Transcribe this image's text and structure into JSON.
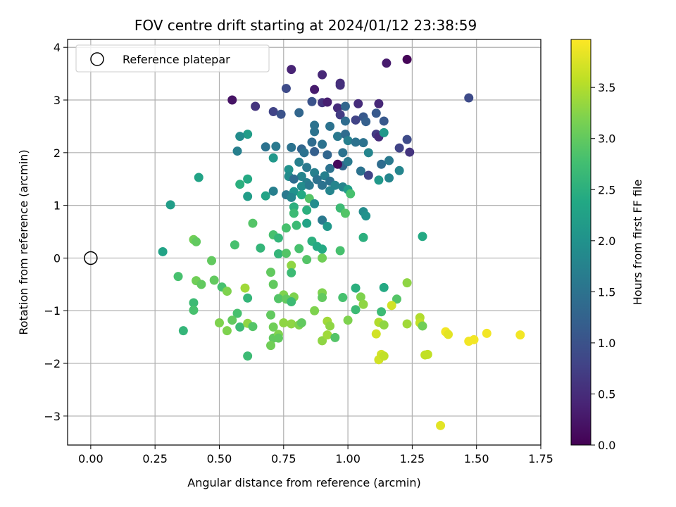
{
  "chart_data": {
    "type": "scatter",
    "title": "FOV centre drift starting at 2024/01/12 23:38:59",
    "xlabel": "Angular distance from reference (arcmin)",
    "ylabel": "Rotation from reference (arcmin)",
    "xlim": [
      -0.09,
      1.75
    ],
    "ylim": [
      -3.55,
      4.15
    ],
    "xticks": [
      0.0,
      0.25,
      0.5,
      0.75,
      1.0,
      1.25,
      1.5,
      1.75
    ],
    "xtick_labels": [
      "0.00",
      "0.25",
      "0.50",
      "0.75",
      "1.00",
      "1.25",
      "1.50",
      "1.75"
    ],
    "yticks": [
      -3,
      -2,
      -1,
      0,
      1,
      2,
      3,
      4
    ],
    "ytick_labels": [
      "−3",
      "−2",
      "−1",
      "0",
      "1",
      "2",
      "3",
      "4"
    ],
    "grid": true,
    "legend": {
      "position": "top-left",
      "entries": [
        {
          "label": "Reference platepar",
          "marker": "open-circle"
        }
      ]
    },
    "reference": {
      "x": 0.0,
      "y": 0.0
    },
    "colorbar": {
      "label": "Hours from first FF file",
      "colormap": "viridis",
      "range": [
        0.0,
        3.97
      ],
      "ticks": [
        0.0,
        0.5,
        1.0,
        1.5,
        2.0,
        2.5,
        3.0,
        3.5
      ],
      "tick_labels": [
        "0.0",
        "0.5",
        "1.0",
        "1.5",
        "2.0",
        "2.5",
        "3.0",
        "3.5"
      ]
    },
    "points": [
      [
        1.23,
        3.77,
        0.05
      ],
      [
        1.15,
        3.7,
        0.3
      ],
      [
        0.78,
        3.58,
        0.4
      ],
      [
        0.9,
        3.48,
        0.45
      ],
      [
        0.97,
        3.32,
        0.5
      ],
      [
        0.97,
        3.28,
        0.55
      ],
      [
        0.76,
        3.22,
        0.9
      ],
      [
        0.87,
        3.2,
        0.3
      ],
      [
        0.55,
        3.0,
        0.2
      ],
      [
        0.64,
        2.88,
        0.6
      ],
      [
        0.86,
        2.97,
        1.0
      ],
      [
        0.9,
        2.95,
        0.6
      ],
      [
        0.92,
        2.96,
        0.35
      ],
      [
        1.04,
        2.93,
        0.5
      ],
      [
        1.12,
        2.93,
        0.45
      ],
      [
        1.47,
        3.04,
        0.9
      ],
      [
        0.96,
        2.85,
        0.5
      ],
      [
        0.71,
        2.78,
        0.8
      ],
      [
        0.74,
        2.73,
        1.0
      ],
      [
        0.81,
        2.76,
        1.3
      ],
      [
        0.97,
        2.72,
        0.7
      ],
      [
        0.99,
        2.88,
        1.3
      ],
      [
        1.06,
        2.68,
        1.1
      ],
      [
        1.11,
        2.75,
        1.1
      ],
      [
        1.03,
        2.62,
        0.8
      ],
      [
        1.07,
        2.59,
        1.2
      ],
      [
        0.87,
        2.52,
        1.5
      ],
      [
        0.93,
        2.5,
        1.5
      ],
      [
        0.99,
        2.6,
        1.4
      ],
      [
        1.14,
        2.6,
        1.1
      ],
      [
        0.61,
        2.35,
        2.2
      ],
      [
        0.58,
        2.31,
        1.9
      ],
      [
        0.87,
        2.4,
        1.5
      ],
      [
        0.96,
        2.31,
        1.6
      ],
      [
        0.99,
        2.35,
        1.4
      ],
      [
        1.11,
        2.35,
        0.7
      ],
      [
        1.12,
        2.3,
        0.5
      ],
      [
        1.14,
        2.38,
        2.1
      ],
      [
        1.23,
        2.25,
        0.9
      ],
      [
        0.68,
        2.11,
        1.5
      ],
      [
        0.72,
        2.12,
        1.6
      ],
      [
        0.78,
        2.1,
        1.5
      ],
      [
        0.82,
        2.07,
        1.3
      ],
      [
        0.86,
        2.2,
        1.4
      ],
      [
        0.9,
        2.16,
        1.5
      ],
      [
        1.0,
        2.23,
        1.7
      ],
      [
        1.03,
        2.2,
        1.5
      ],
      [
        1.06,
        2.19,
        1.5
      ],
      [
        1.2,
        2.09,
        0.8
      ],
      [
        1.24,
        2.01,
        0.6
      ],
      [
        0.57,
        2.03,
        1.7
      ],
      [
        0.71,
        1.9,
        2.1
      ],
      [
        0.83,
        2.0,
        1.5
      ],
      [
        0.87,
        2.02,
        1.2
      ],
      [
        0.92,
        1.96,
        1.3
      ],
      [
        0.98,
        2.0,
        1.5
      ],
      [
        1.08,
        2.0,
        1.8
      ],
      [
        0.81,
        1.82,
        1.7
      ],
      [
        0.84,
        1.72,
        1.6
      ],
      [
        0.77,
        1.68,
        2.0
      ],
      [
        0.93,
        1.7,
        1.5
      ],
      [
        0.98,
        1.75,
        1.3
      ],
      [
        0.96,
        1.78,
        0.1
      ],
      [
        1.0,
        1.83,
        1.6
      ],
      [
        1.05,
        1.65,
        1.5
      ],
      [
        1.13,
        1.78,
        1.4
      ],
      [
        1.16,
        1.85,
        1.6
      ],
      [
        1.08,
        1.57,
        0.8
      ],
      [
        1.2,
        1.66,
        1.8
      ],
      [
        0.87,
        1.62,
        1.7
      ],
      [
        0.91,
        1.56,
        1.7
      ],
      [
        0.42,
        1.53,
        2.3
      ],
      [
        0.61,
        1.5,
        2.4
      ],
      [
        0.77,
        1.55,
        1.9
      ],
      [
        0.82,
        1.55,
        1.8
      ],
      [
        0.79,
        1.5,
        1.4
      ],
      [
        0.84,
        1.43,
        1.7
      ],
      [
        0.88,
        1.49,
        1.5
      ],
      [
        0.93,
        1.46,
        1.5
      ],
      [
        0.95,
        1.38,
        1.8
      ],
      [
        0.58,
        1.4,
        2.5
      ],
      [
        0.71,
        1.27,
        1.7
      ],
      [
        0.76,
        1.2,
        1.6
      ],
      [
        0.79,
        1.26,
        2.0
      ],
      [
        0.82,
        1.36,
        1.9
      ],
      [
        0.85,
        1.38,
        1.6
      ],
      [
        0.9,
        1.38,
        1.5
      ],
      [
        0.93,
        1.28,
        1.8
      ],
      [
        0.98,
        1.35,
        1.8
      ],
      [
        1.0,
        1.3,
        2.2
      ],
      [
        1.12,
        1.48,
        2.1
      ],
      [
        1.16,
        1.52,
        1.8
      ],
      [
        0.61,
        1.17,
        2.2
      ],
      [
        0.68,
        1.18,
        2.3
      ],
      [
        0.78,
        1.15,
        1.8
      ],
      [
        0.82,
        1.2,
        2.4
      ],
      [
        0.85,
        1.13,
        2.9
      ],
      [
        1.01,
        1.22,
        2.8
      ],
      [
        0.31,
        1.01,
        2.2
      ],
      [
        0.79,
        0.97,
        2.5
      ],
      [
        0.87,
        1.03,
        1.9
      ],
      [
        0.97,
        0.95,
        2.7
      ],
      [
        1.06,
        0.88,
        1.9
      ],
      [
        1.07,
        0.8,
        2.0
      ],
      [
        0.79,
        0.85,
        2.7
      ],
      [
        0.84,
        0.91,
        2.5
      ],
      [
        0.9,
        0.72,
        1.6
      ],
      [
        0.99,
        0.85,
        2.9
      ],
      [
        0.63,
        0.66,
        2.9
      ],
      [
        0.76,
        0.57,
        2.8
      ],
      [
        0.8,
        0.62,
        2.7
      ],
      [
        0.84,
        0.66,
        2.3
      ],
      [
        0.92,
        0.6,
        2.1
      ],
      [
        0.71,
        0.44,
        2.8
      ],
      [
        0.73,
        0.38,
        2.6
      ],
      [
        1.06,
        0.39,
        2.5
      ],
      [
        1.29,
        0.41,
        2.4
      ],
      [
        0.4,
        0.35,
        3.1
      ],
      [
        0.41,
        0.31,
        3.0
      ],
      [
        0.86,
        0.32,
        2.5
      ],
      [
        0.88,
        0.22,
        2.4
      ],
      [
        0.28,
        0.12,
        2.3
      ],
      [
        0.56,
        0.25,
        2.8
      ],
      [
        0.66,
        0.19,
        2.6
      ],
      [
        0.73,
        0.08,
        2.6
      ],
      [
        0.76,
        0.09,
        2.9
      ],
      [
        0.81,
        0.18,
        2.8
      ],
      [
        0.9,
        0.17,
        2.4
      ],
      [
        0.97,
        0.14,
        2.8
      ],
      [
        0.84,
        -0.03,
        2.9
      ],
      [
        0.9,
        0.0,
        3.1
      ],
      [
        0.47,
        -0.05,
        3.0
      ],
      [
        0.78,
        -0.14,
        3.3
      ],
      [
        0.7,
        -0.27,
        3.0
      ],
      [
        0.78,
        -0.28,
        2.7
      ],
      [
        0.34,
        -0.35,
        2.8
      ],
      [
        0.41,
        -0.43,
        3.1
      ],
      [
        0.43,
        -0.5,
        3.0
      ],
      [
        0.48,
        -0.42,
        3.0
      ],
      [
        0.51,
        -0.55,
        2.8
      ],
      [
        0.71,
        -0.5,
        3.0
      ],
      [
        0.75,
        -0.7,
        3.2
      ],
      [
        0.79,
        -0.74,
        3.2
      ],
      [
        0.6,
        -0.57,
        3.4
      ],
      [
        0.53,
        -0.63,
        3.2
      ],
      [
        0.61,
        -0.76,
        2.6
      ],
      [
        0.73,
        -0.77,
        2.9
      ],
      [
        0.76,
        -0.78,
        3.0
      ],
      [
        0.78,
        -0.83,
        2.7
      ],
      [
        0.9,
        -0.66,
        3.2
      ],
      [
        0.9,
        -0.75,
        3.0
      ],
      [
        0.98,
        -0.75,
        2.8
      ],
      [
        1.03,
        -0.57,
        2.5
      ],
      [
        1.05,
        -0.74,
        3.2
      ],
      [
        1.06,
        -0.88,
        3.3
      ],
      [
        1.14,
        -0.56,
        2.4
      ],
      [
        1.19,
        -0.78,
        2.9
      ],
      [
        1.23,
        -0.47,
        3.3
      ],
      [
        0.4,
        -0.85,
        2.7
      ],
      [
        0.4,
        -0.99,
        2.8
      ],
      [
        0.57,
        -1.05,
        2.8
      ],
      [
        0.7,
        -1.08,
        3.0
      ],
      [
        0.87,
        -1.0,
        3.2
      ],
      [
        1.03,
        -0.98,
        2.7
      ],
      [
        1.13,
        -1.02,
        2.7
      ],
      [
        1.17,
        -0.9,
        3.7
      ],
      [
        0.5,
        -1.23,
        3.2
      ],
      [
        0.55,
        -1.18,
        3.0
      ],
      [
        0.58,
        -1.31,
        2.7
      ],
      [
        0.61,
        -1.24,
        3.3
      ],
      [
        0.63,
        -1.3,
        2.9
      ],
      [
        0.36,
        -1.38,
        2.6
      ],
      [
        0.53,
        -1.38,
        3.2
      ],
      [
        0.71,
        -1.31,
        3.1
      ],
      [
        0.75,
        -1.23,
        3.3
      ],
      [
        0.78,
        -1.25,
        3.3
      ],
      [
        0.81,
        -1.27,
        3.2
      ],
      [
        0.82,
        -1.23,
        3.0
      ],
      [
        0.92,
        -1.2,
        3.4
      ],
      [
        0.93,
        -1.29,
        3.3
      ],
      [
        1.0,
        -1.18,
        3.2
      ],
      [
        1.12,
        -1.22,
        3.5
      ],
      [
        1.14,
        -1.27,
        3.3
      ],
      [
        1.23,
        -1.25,
        3.4
      ],
      [
        1.28,
        -1.13,
        3.5
      ],
      [
        1.28,
        -1.23,
        3.6
      ],
      [
        1.29,
        -1.29,
        3.1
      ],
      [
        0.71,
        -1.52,
        3.0
      ],
      [
        0.73,
        -1.45,
        3.2
      ],
      [
        0.73,
        -1.52,
        3.0
      ],
      [
        0.7,
        -1.66,
        3.1
      ],
      [
        0.9,
        -1.57,
        3.3
      ],
      [
        0.92,
        -1.46,
        3.4
      ],
      [
        0.95,
        -1.51,
        2.9
      ],
      [
        1.11,
        -1.44,
        3.7
      ],
      [
        0.61,
        -1.86,
        2.7
      ],
      [
        1.12,
        -1.93,
        3.7
      ],
      [
        1.13,
        -1.83,
        3.7
      ],
      [
        1.14,
        -1.86,
        3.6
      ],
      [
        1.3,
        -1.84,
        3.6
      ],
      [
        1.31,
        -1.83,
        3.6
      ],
      [
        1.38,
        -1.4,
        3.9
      ],
      [
        1.39,
        -1.45,
        3.8
      ],
      [
        1.47,
        -1.58,
        3.9
      ],
      [
        1.49,
        -1.55,
        3.9
      ],
      [
        1.54,
        -1.43,
        3.9
      ],
      [
        1.67,
        -1.46,
        3.9
      ],
      [
        1.36,
        -3.18,
        3.8
      ]
    ]
  }
}
